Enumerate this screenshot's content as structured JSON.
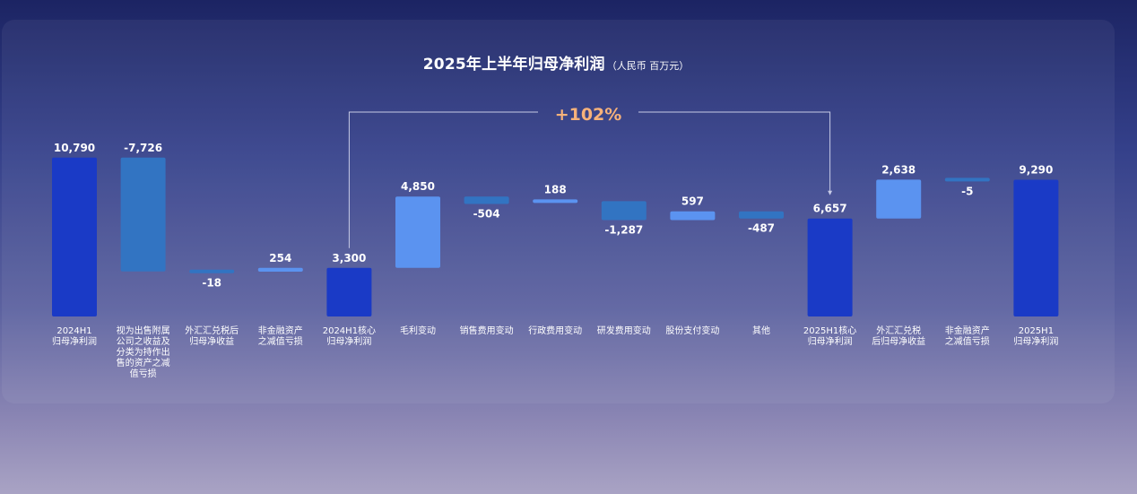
{
  "title": "2025年上半年归母净利润",
  "unit": "（人民币 百万元）",
  "growth_label": "+102%",
  "colors": {
    "total": "#1a3ac6",
    "increase": "#5b93f0",
    "decrease": "#3274c2",
    "growth_text": "#f7b27a"
  },
  "chart_data": {
    "type": "bar",
    "subtype": "waterfall",
    "title": "2025年上半年归母净利润",
    "unit": "人民币 百万元",
    "categories": [
      "2024H1 归母净利润",
      "视为出售附属公司之收益及分类为持作出售的资产之减值亏损",
      "外汇汇兑税后归母净收益",
      "非金融资产之减值亏损",
      "2024H1核心归母净利润",
      "毛利变动",
      "销售费用变动",
      "行政费用变动",
      "研发费用变动",
      "股份支付变动",
      "其他",
      "2025H1核心归母净利润",
      "外汇汇兑税后归母净收益",
      "非金融资产之减值亏损",
      "2025H1 归母净利润"
    ],
    "values": [
      10790,
      -7726,
      -18,
      254,
      3300,
      4850,
      -504,
      188,
      -1287,
      597,
      -487,
      6657,
      2638,
      -5,
      9290
    ],
    "value_labels": [
      "10,790",
      "-7,726",
      "-18",
      "254",
      "3,300",
      "4,850",
      "-504",
      "188",
      "-1,287",
      "597",
      "-487",
      "6,657",
      "2,638",
      "-5",
      "9,290"
    ],
    "bar_kind": [
      "total",
      "delta",
      "delta",
      "delta",
      "total",
      "delta",
      "delta",
      "delta",
      "delta",
      "delta",
      "delta",
      "total",
      "delta",
      "delta",
      "total"
    ],
    "annotation": {
      "text": "+102%",
      "from": "2024H1核心归母净利润",
      "to": "2025H1核心归母净利润"
    }
  },
  "labels": [
    "2024H1\n归母净利润",
    "视为出售附属\n公司之收益及\n分类为持作出\n售的资产之减\n值亏损",
    "外汇汇兑税后\n归母净收益",
    "非金融资产\n之减值亏损",
    "2024H1核心\n归母净利润",
    "毛利变动",
    "销售费用变动",
    "行政费用变动",
    "研发费用变动",
    "股份支付变动",
    "其他",
    "2025H1核心\n归母净利润",
    "外汇汇兑税\n后归母净收益",
    "非金融资产\n之减值亏损",
    "2025H1\n归母净利润"
  ]
}
